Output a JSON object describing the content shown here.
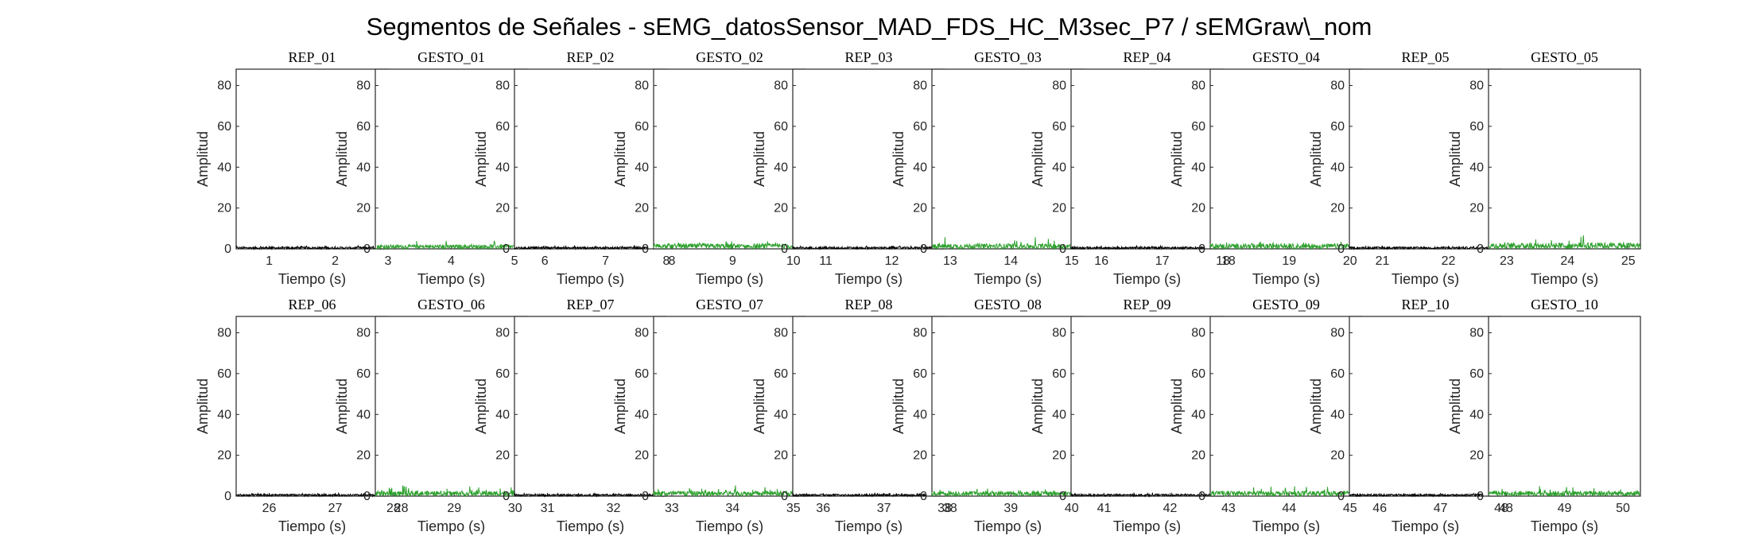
{
  "figure": {
    "title": "Segmentos de Señales - sEMG_datosSensor_MAD_FDS_HC_M3sec_P7 / sEMGraw\\_nom"
  },
  "colors": {
    "rep": "#000000",
    "gesto": "#2ca02c"
  },
  "chart_data": [
    {
      "type": "line",
      "title": "REP_01",
      "xlabel": "Tiempo (s)",
      "ylabel": "Amplitud",
      "xlim": [
        0.5,
        2.8
      ],
      "ylim": [
        0,
        88
      ],
      "xticks": [
        1,
        2
      ],
      "yticks": [
        0,
        20,
        40,
        60,
        80
      ],
      "series": [
        {
          "name": "REP_01",
          "x_range": [
            0.5,
            2.8
          ],
          "amp_level": 0.7,
          "amp_peak": 1.5
        }
      ]
    },
    {
      "type": "line",
      "title": "GESTO_01",
      "xlabel": "Tiempo (s)",
      "ylabel": "Amplitud",
      "xlim": [
        2.8,
        5.2
      ],
      "ylim": [
        0,
        88
      ],
      "xticks": [
        3,
        4,
        5
      ],
      "yticks": [
        0,
        20,
        40,
        60,
        80
      ],
      "series": [
        {
          "name": "GESTO_01",
          "x_range": [
            2.8,
            5.2
          ],
          "amp_level": 1.5,
          "amp_peak": 4
        }
      ]
    },
    {
      "type": "line",
      "title": "REP_02",
      "xlabel": "Tiempo (s)",
      "ylabel": "Amplitud",
      "xlim": [
        5.5,
        8.0
      ],
      "ylim": [
        0,
        88
      ],
      "xticks": [
        6,
        7,
        8
      ],
      "yticks": [
        0,
        20,
        40,
        60,
        80
      ],
      "series": [
        {
          "name": "REP_02",
          "x_range": [
            5.5,
            7.7
          ],
          "amp_level": 0.7,
          "amp_peak": 1.5
        }
      ]
    },
    {
      "type": "line",
      "title": "GESTO_02",
      "xlabel": "Tiempo (s)",
      "ylabel": "Amplitud",
      "xlim": [
        7.7,
        10.2
      ],
      "ylim": [
        0,
        88
      ],
      "xticks": [
        8,
        9,
        10
      ],
      "yticks": [
        0,
        20,
        40,
        60,
        80
      ],
      "series": [
        {
          "name": "GESTO_02",
          "x_range": [
            7.7,
            10.2
          ],
          "amp_level": 1.8,
          "amp_peak": 4
        }
      ]
    },
    {
      "type": "line",
      "title": "REP_03",
      "xlabel": "Tiempo (s)",
      "ylabel": "Amplitud",
      "xlim": [
        10.5,
        12.8
      ],
      "ylim": [
        0,
        88
      ],
      "xticks": [
        11,
        12
      ],
      "yticks": [
        0,
        20,
        40,
        60,
        80
      ],
      "series": [
        {
          "name": "REP_03",
          "x_range": [
            10.5,
            12.8
          ],
          "amp_level": 0.7,
          "amp_peak": 1.5
        }
      ]
    },
    {
      "type": "line",
      "title": "GESTO_03",
      "xlabel": "Tiempo (s)",
      "ylabel": "Amplitud",
      "xlim": [
        12.7,
        15.2
      ],
      "ylim": [
        0,
        88
      ],
      "xticks": [
        13,
        14,
        15
      ],
      "yticks": [
        0,
        20,
        40,
        60,
        80
      ],
      "series": [
        {
          "name": "GESTO_03",
          "x_range": [
            12.7,
            15.2
          ],
          "amp_level": 1.8,
          "amp_peak": 6
        }
      ]
    },
    {
      "type": "line",
      "title": "REP_04",
      "xlabel": "Tiempo (s)",
      "ylabel": "Amplitud",
      "xlim": [
        15.5,
        18.0
      ],
      "ylim": [
        0,
        88
      ],
      "xticks": [
        16,
        17,
        18
      ],
      "yticks": [
        0,
        20,
        40,
        60,
        80
      ],
      "series": [
        {
          "name": "REP_04",
          "x_range": [
            15.5,
            17.7
          ],
          "amp_level": 0.7,
          "amp_peak": 1.5
        }
      ]
    },
    {
      "type": "line",
      "title": "GESTO_04",
      "xlabel": "Tiempo (s)",
      "ylabel": "Amplitud",
      "xlim": [
        17.7,
        20.2
      ],
      "ylim": [
        0,
        88
      ],
      "xticks": [
        18,
        19,
        20
      ],
      "yticks": [
        0,
        20,
        40,
        60,
        80
      ],
      "series": [
        {
          "name": "GESTO_04",
          "x_range": [
            17.7,
            20.2
          ],
          "amp_level": 1.8,
          "amp_peak": 4
        }
      ]
    },
    {
      "type": "line",
      "title": "REP_05",
      "xlabel": "Tiempo (s)",
      "ylabel": "Amplitud",
      "xlim": [
        20.5,
        22.8
      ],
      "ylim": [
        0,
        88
      ],
      "xticks": [
        21,
        22
      ],
      "yticks": [
        0,
        20,
        40,
        60,
        80
      ],
      "series": [
        {
          "name": "REP_05",
          "x_range": [
            20.5,
            22.8
          ],
          "amp_level": 0.7,
          "amp_peak": 1.5
        }
      ]
    },
    {
      "type": "line",
      "title": "GESTO_05",
      "xlabel": "Tiempo (s)",
      "ylabel": "Amplitud",
      "xlim": [
        22.7,
        25.2
      ],
      "ylim": [
        0,
        88
      ],
      "xticks": [
        23,
        24,
        25
      ],
      "yticks": [
        0,
        20,
        40,
        60,
        80
      ],
      "series": [
        {
          "name": "GESTO_05",
          "x_range": [
            22.7,
            25.2
          ],
          "amp_level": 2.2,
          "amp_peak": 7
        }
      ]
    },
    {
      "type": "line",
      "title": "REP_06",
      "xlabel": "Tiempo (s)",
      "ylabel": "Amplitud",
      "xlim": [
        25.5,
        27.8
      ],
      "ylim": [
        0,
        88
      ],
      "xticks": [
        26,
        27,
        28
      ],
      "yticks": [
        0,
        20,
        40,
        60,
        80
      ],
      "series": [
        {
          "name": "REP_06",
          "x_range": [
            25.5,
            27.6
          ],
          "amp_level": 0.7,
          "amp_peak": 1.5
        }
      ]
    },
    {
      "type": "line",
      "title": "GESTO_06",
      "xlabel": "Tiempo (s)",
      "ylabel": "Amplitud",
      "xlim": [
        27.7,
        30.2
      ],
      "ylim": [
        0,
        88
      ],
      "xticks": [
        28,
        29,
        30
      ],
      "yticks": [
        0,
        20,
        40,
        60,
        80
      ],
      "series": [
        {
          "name": "GESTO_06",
          "x_range": [
            27.7,
            30.2
          ],
          "amp_level": 1.8,
          "amp_peak": 6
        }
      ]
    },
    {
      "type": "line",
      "title": "REP_07",
      "xlabel": "Tiempo (s)",
      "ylabel": "Amplitud",
      "xlim": [
        30.5,
        32.8
      ],
      "ylim": [
        0,
        88
      ],
      "xticks": [
        31,
        32
      ],
      "yticks": [
        0,
        20,
        40,
        60,
        80
      ],
      "series": [
        {
          "name": "REP_07",
          "x_range": [
            30.5,
            32.8
          ],
          "amp_level": 0.7,
          "amp_peak": 1.5
        }
      ]
    },
    {
      "type": "line",
      "title": "GESTO_07",
      "xlabel": "Tiempo (s)",
      "ylabel": "Amplitud",
      "xlim": [
        32.7,
        35.2
      ],
      "ylim": [
        0,
        88
      ],
      "xticks": [
        33,
        34,
        35
      ],
      "yticks": [
        0,
        20,
        40,
        60,
        80
      ],
      "series": [
        {
          "name": "GESTO_07",
          "x_range": [
            32.7,
            35.2
          ],
          "amp_level": 1.8,
          "amp_peak": 6
        }
      ]
    },
    {
      "type": "line",
      "title": "REP_08",
      "xlabel": "Tiempo (s)",
      "ylabel": "Amplitud",
      "xlim": [
        35.5,
        38.0
      ],
      "ylim": [
        0,
        88
      ],
      "xticks": [
        36,
        37,
        38
      ],
      "yticks": [
        0,
        20,
        40,
        60,
        80
      ],
      "series": [
        {
          "name": "REP_08",
          "x_range": [
            35.5,
            37.7
          ],
          "amp_level": 0.7,
          "amp_peak": 1.5
        }
      ]
    },
    {
      "type": "line",
      "title": "GESTO_08",
      "xlabel": "Tiempo (s)",
      "ylabel": "Amplitud",
      "xlim": [
        37.7,
        40.2
      ],
      "ylim": [
        0,
        88
      ],
      "xticks": [
        38,
        39,
        40
      ],
      "yticks": [
        0,
        20,
        40,
        60,
        80
      ],
      "series": [
        {
          "name": "GESTO_08",
          "x_range": [
            37.7,
            40.2
          ],
          "amp_level": 1.8,
          "amp_peak": 4
        }
      ]
    },
    {
      "type": "line",
      "title": "REP_09",
      "xlabel": "Tiempo (s)",
      "ylabel": "Amplitud",
      "xlim": [
        40.5,
        42.8
      ],
      "ylim": [
        0,
        88
      ],
      "xticks": [
        41,
        42
      ],
      "yticks": [
        0,
        20,
        40,
        60,
        80
      ],
      "series": [
        {
          "name": "REP_09",
          "x_range": [
            40.5,
            42.8
          ],
          "amp_level": 0.7,
          "amp_peak": 1.5
        }
      ]
    },
    {
      "type": "line",
      "title": "GESTO_09",
      "xlabel": "Tiempo (s)",
      "ylabel": "Amplitud",
      "xlim": [
        42.7,
        45.2
      ],
      "ylim": [
        0,
        88
      ],
      "xticks": [
        43,
        44,
        45
      ],
      "yticks": [
        0,
        20,
        40,
        60,
        80
      ],
      "series": [
        {
          "name": "GESTO_09",
          "x_range": [
            42.7,
            45.2
          ],
          "amp_level": 1.8,
          "amp_peak": 5
        }
      ]
    },
    {
      "type": "line",
      "title": "REP_10",
      "xlabel": "Tiempo (s)",
      "ylabel": "Amplitud",
      "xlim": [
        45.5,
        48.0
      ],
      "ylim": [
        0,
        88
      ],
      "xticks": [
        46,
        47,
        48
      ],
      "yticks": [
        0,
        20,
        40,
        60,
        80
      ],
      "series": [
        {
          "name": "REP_10",
          "x_range": [
            45.5,
            47.7
          ],
          "amp_level": 0.7,
          "amp_peak": 1.5
        }
      ]
    },
    {
      "type": "line",
      "title": "GESTO_10",
      "xlabel": "Tiempo (s)",
      "ylabel": "Amplitud",
      "xlim": [
        47.7,
        50.3
      ],
      "ylim": [
        0,
        88
      ],
      "xticks": [
        48,
        49,
        50
      ],
      "yticks": [
        0,
        20,
        40,
        60,
        80
      ],
      "series": [
        {
          "name": "GESTO_10",
          "x_range": [
            47.7,
            50.3
          ],
          "amp_level": 1.8,
          "amp_peak": 5
        }
      ]
    }
  ]
}
